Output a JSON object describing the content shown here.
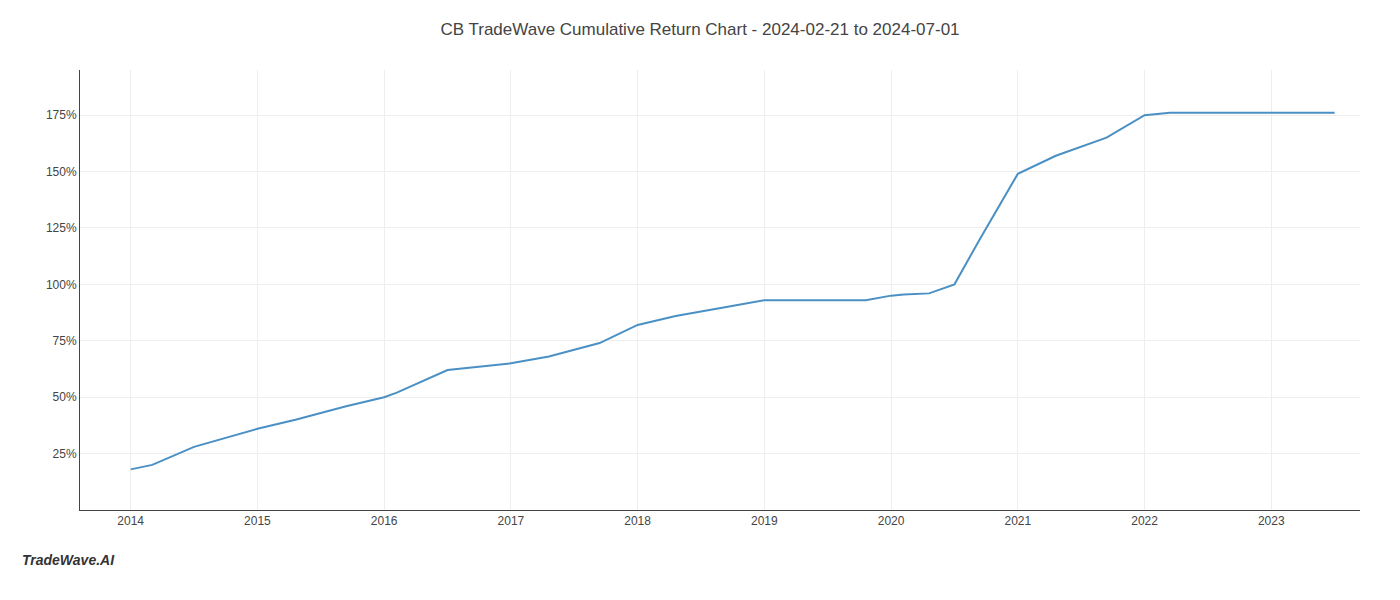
{
  "chart_data": {
    "type": "line",
    "title": "CB TradeWave Cumulative Return Chart - 2024-02-21 to 2024-07-01",
    "annotations": [
      "TradeWave.AI"
    ],
    "x": [
      2014.0,
      2014.17,
      2014.5,
      2015.0,
      2015.3,
      2015.7,
      2016.0,
      2016.1,
      2016.5,
      2017.0,
      2017.3,
      2017.7,
      2018.0,
      2018.3,
      2018.7,
      2019.0,
      2019.3,
      2019.5,
      2019.8,
      2020.0,
      2020.1,
      2020.3,
      2020.5,
      2020.7,
      2021.0,
      2021.3,
      2021.7,
      2022.0,
      2022.2,
      2022.5,
      2022.8,
      2023.0,
      2023.5
    ],
    "values": [
      18,
      20,
      28,
      36,
      40,
      46,
      50,
      52,
      62,
      65,
      68,
      74,
      82,
      86,
      90,
      93,
      93,
      93,
      93,
      95,
      95.5,
      96,
      100,
      120,
      149,
      157,
      165,
      175,
      176,
      176,
      176,
      176,
      176
    ],
    "color": "#4a90c4",
    "xlim": [
      2013.6,
      2023.7
    ],
    "ylim": [
      0,
      195
    ],
    "xticks": [
      2014,
      2015,
      2016,
      2017,
      2018,
      2019,
      2020,
      2021,
      2022,
      2023
    ],
    "yticks": [
      {
        "value": 25,
        "label": "25%"
      },
      {
        "value": 50,
        "label": "50%"
      },
      {
        "value": 75,
        "label": "75%"
      },
      {
        "value": 100,
        "label": "100%"
      },
      {
        "value": 125,
        "label": "125%"
      },
      {
        "value": 150,
        "label": "150%"
      },
      {
        "value": 175,
        "label": "175%"
      }
    ],
    "grid": true
  }
}
